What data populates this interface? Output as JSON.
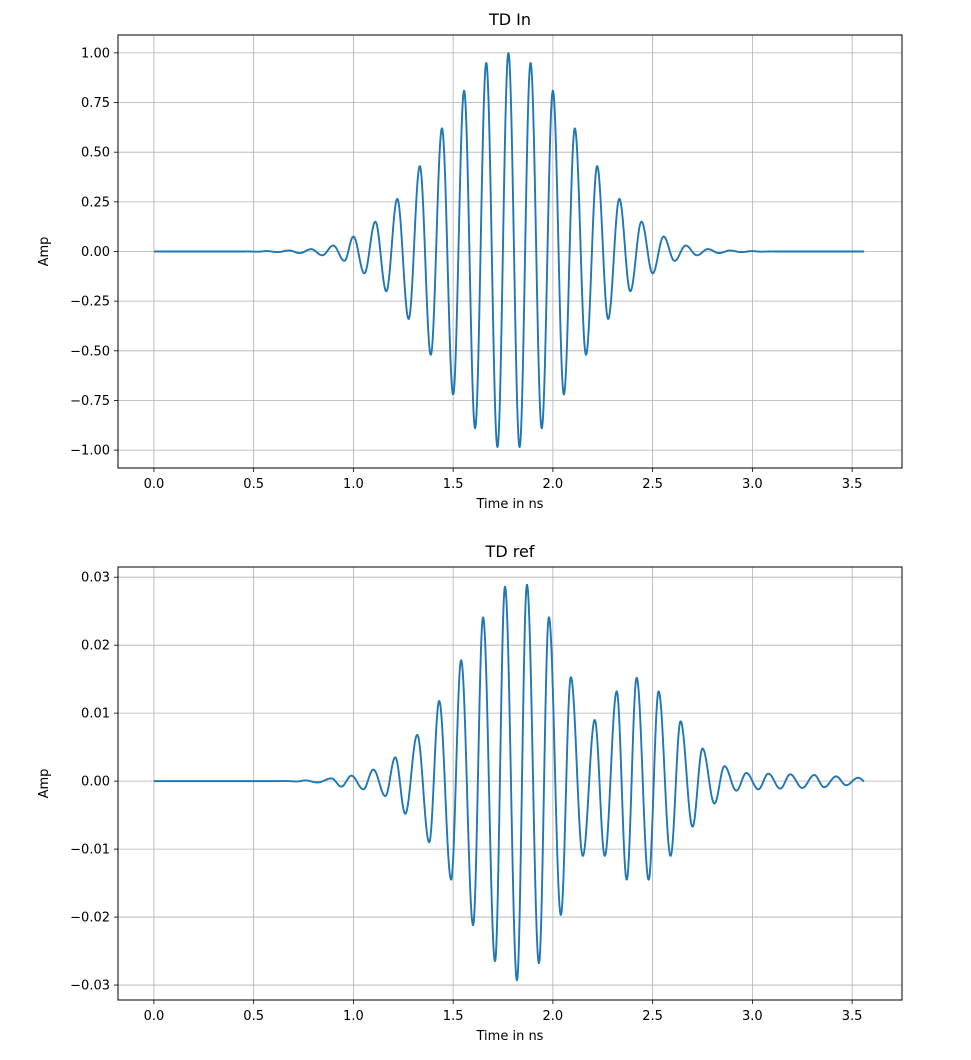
{
  "chart_data": [
    {
      "type": "line",
      "title": "TD In",
      "xlabel": "Time in ns",
      "ylabel": "Amp",
      "xlim": [
        -0.18,
        3.75
      ],
      "ylim": [
        -1.09,
        1.09
      ],
      "xticks": [
        0.0,
        0.5,
        1.0,
        1.5,
        2.0,
        2.5,
        3.0,
        3.5
      ],
      "xtick_labels": [
        "0.0",
        "0.5",
        "1.0",
        "1.5",
        "2.0",
        "2.5",
        "3.0",
        "3.5"
      ],
      "yticks": [
        1.0,
        0.75,
        0.5,
        0.25,
        0.0,
        -0.25,
        -0.5,
        -0.75,
        -1.0
      ],
      "ytick_labels": [
        "1.00",
        "0.75",
        "0.50",
        "0.25",
        "0.00",
        "−0.25",
        "−0.50",
        "−0.75",
        "−1.00"
      ],
      "grid": true,
      "line_color": "#1f77b4",
      "x_range": [
        0.0,
        3.56
      ],
      "peaks": [
        {
          "x": 0.566,
          "y": 0.002
        },
        {
          "x": 0.621,
          "y": -0.003
        },
        {
          "x": 0.677,
          "y": 0.005
        },
        {
          "x": 0.732,
          "y": -0.008
        },
        {
          "x": 0.788,
          "y": 0.012
        },
        {
          "x": 0.844,
          "y": -0.019
        },
        {
          "x": 0.899,
          "y": 0.03
        },
        {
          "x": 0.955,
          "y": -0.047
        },
        {
          "x": 1.0,
          "y": 0.075
        },
        {
          "x": 1.055,
          "y": -0.11
        },
        {
          "x": 1.11,
          "y": 0.15
        },
        {
          "x": 1.165,
          "y": -0.2
        },
        {
          "x": 1.22,
          "y": 0.265
        },
        {
          "x": 1.277,
          "y": -0.34
        },
        {
          "x": 1.333,
          "y": 0.43
        },
        {
          "x": 1.388,
          "y": -0.52
        },
        {
          "x": 1.444,
          "y": 0.62
        },
        {
          "x": 1.5,
          "y": -0.72
        },
        {
          "x": 1.555,
          "y": 0.81
        },
        {
          "x": 1.61,
          "y": -0.89
        },
        {
          "x": 1.666,
          "y": 0.95
        },
        {
          "x": 1.722,
          "y": -0.985
        },
        {
          "x": 1.777,
          "y": 1.0
        },
        {
          "x": 1.833,
          "y": -0.985
        },
        {
          "x": 1.888,
          "y": 0.95
        },
        {
          "x": 1.944,
          "y": -0.89
        },
        {
          "x": 2.0,
          "y": 0.81
        },
        {
          "x": 2.055,
          "y": -0.72
        },
        {
          "x": 2.11,
          "y": 0.62
        },
        {
          "x": 2.166,
          "y": -0.52
        },
        {
          "x": 2.222,
          "y": 0.43
        },
        {
          "x": 2.277,
          "y": -0.34
        },
        {
          "x": 2.333,
          "y": 0.265
        },
        {
          "x": 2.388,
          "y": -0.2
        },
        {
          "x": 2.444,
          "y": 0.15
        },
        {
          "x": 2.5,
          "y": -0.11
        },
        {
          "x": 2.555,
          "y": 0.075
        },
        {
          "x": 2.61,
          "y": -0.047
        },
        {
          "x": 2.666,
          "y": 0.03
        },
        {
          "x": 2.722,
          "y": -0.019
        },
        {
          "x": 2.777,
          "y": 0.012
        },
        {
          "x": 2.833,
          "y": -0.008
        },
        {
          "x": 2.888,
          "y": 0.005
        },
        {
          "x": 2.944,
          "y": -0.003
        },
        {
          "x": 3.0,
          "y": 0.002
        }
      ]
    },
    {
      "type": "line",
      "title": "TD ref",
      "xlabel": "Time in ns",
      "ylabel": "Amp",
      "xlim": [
        -0.18,
        3.75
      ],
      "ylim": [
        -0.0322,
        0.0315
      ],
      "xticks": [
        0.0,
        0.5,
        1.0,
        1.5,
        2.0,
        2.5,
        3.0,
        3.5
      ],
      "xtick_labels": [
        "0.0",
        "0.5",
        "1.0",
        "1.5",
        "2.0",
        "2.5",
        "3.0",
        "3.5"
      ],
      "yticks": [
        0.03,
        0.02,
        0.01,
        0.0,
        -0.01,
        -0.02,
        -0.03
      ],
      "ytick_labels": [
        "0.03",
        "0.02",
        "0.01",
        "0.00",
        "−0.01",
        "−0.02",
        "−0.03"
      ],
      "grid": true,
      "line_color": "#1f77b4",
      "x_range": [
        0.0,
        3.56
      ],
      "peaks": [
        {
          "x": 0.76,
          "y": 0.0001
        },
        {
          "x": 0.82,
          "y": -0.0002
        },
        {
          "x": 0.89,
          "y": 0.0004
        },
        {
          "x": 0.94,
          "y": -0.0008
        },
        {
          "x": 0.99,
          "y": 0.0008
        },
        {
          "x": 1.05,
          "y": -0.0012
        },
        {
          "x": 1.1,
          "y": 0.0017
        },
        {
          "x": 1.16,
          "y": -0.0022
        },
        {
          "x": 1.21,
          "y": 0.0035
        },
        {
          "x": 1.26,
          "y": -0.0048
        },
        {
          "x": 1.32,
          "y": 0.0068
        },
        {
          "x": 1.38,
          "y": -0.009
        },
        {
          "x": 1.43,
          "y": 0.0118
        },
        {
          "x": 1.49,
          "y": -0.0145
        },
        {
          "x": 1.54,
          "y": 0.0178
        },
        {
          "x": 1.6,
          "y": -0.0212
        },
        {
          "x": 1.65,
          "y": 0.0241
        },
        {
          "x": 1.71,
          "y": -0.0265
        },
        {
          "x": 1.76,
          "y": 0.0286
        },
        {
          "x": 1.82,
          "y": -0.0293
        },
        {
          "x": 1.87,
          "y": 0.0289
        },
        {
          "x": 1.93,
          "y": -0.0268
        },
        {
          "x": 1.98,
          "y": 0.0241
        },
        {
          "x": 2.04,
          "y": -0.0197
        },
        {
          "x": 2.09,
          "y": 0.0153
        },
        {
          "x": 2.15,
          "y": -0.011
        },
        {
          "x": 2.21,
          "y": 0.009
        },
        {
          "x": 2.26,
          "y": -0.011
        },
        {
          "x": 2.32,
          "y": 0.0132
        },
        {
          "x": 2.37,
          "y": -0.0145
        },
        {
          "x": 2.42,
          "y": 0.0152
        },
        {
          "x": 2.48,
          "y": -0.0145
        },
        {
          "x": 2.53,
          "y": 0.0132
        },
        {
          "x": 2.59,
          "y": -0.011
        },
        {
          "x": 2.64,
          "y": 0.0088
        },
        {
          "x": 2.7,
          "y": -0.0067
        },
        {
          "x": 2.75,
          "y": 0.0048
        },
        {
          "x": 2.81,
          "y": -0.0033
        },
        {
          "x": 2.86,
          "y": 0.0022
        },
        {
          "x": 2.92,
          "y": -0.0014
        },
        {
          "x": 2.97,
          "y": 0.0012
        },
        {
          "x": 3.03,
          "y": -0.0012
        },
        {
          "x": 3.08,
          "y": 0.0011
        },
        {
          "x": 3.14,
          "y": -0.0011
        },
        {
          "x": 3.19,
          "y": 0.001
        },
        {
          "x": 3.25,
          "y": -0.001
        },
        {
          "x": 3.31,
          "y": 0.0009
        },
        {
          "x": 3.36,
          "y": -0.0009
        },
        {
          "x": 3.42,
          "y": 0.0007
        },
        {
          "x": 3.47,
          "y": -0.0006
        },
        {
          "x": 3.53,
          "y": 0.0005
        }
      ]
    }
  ]
}
